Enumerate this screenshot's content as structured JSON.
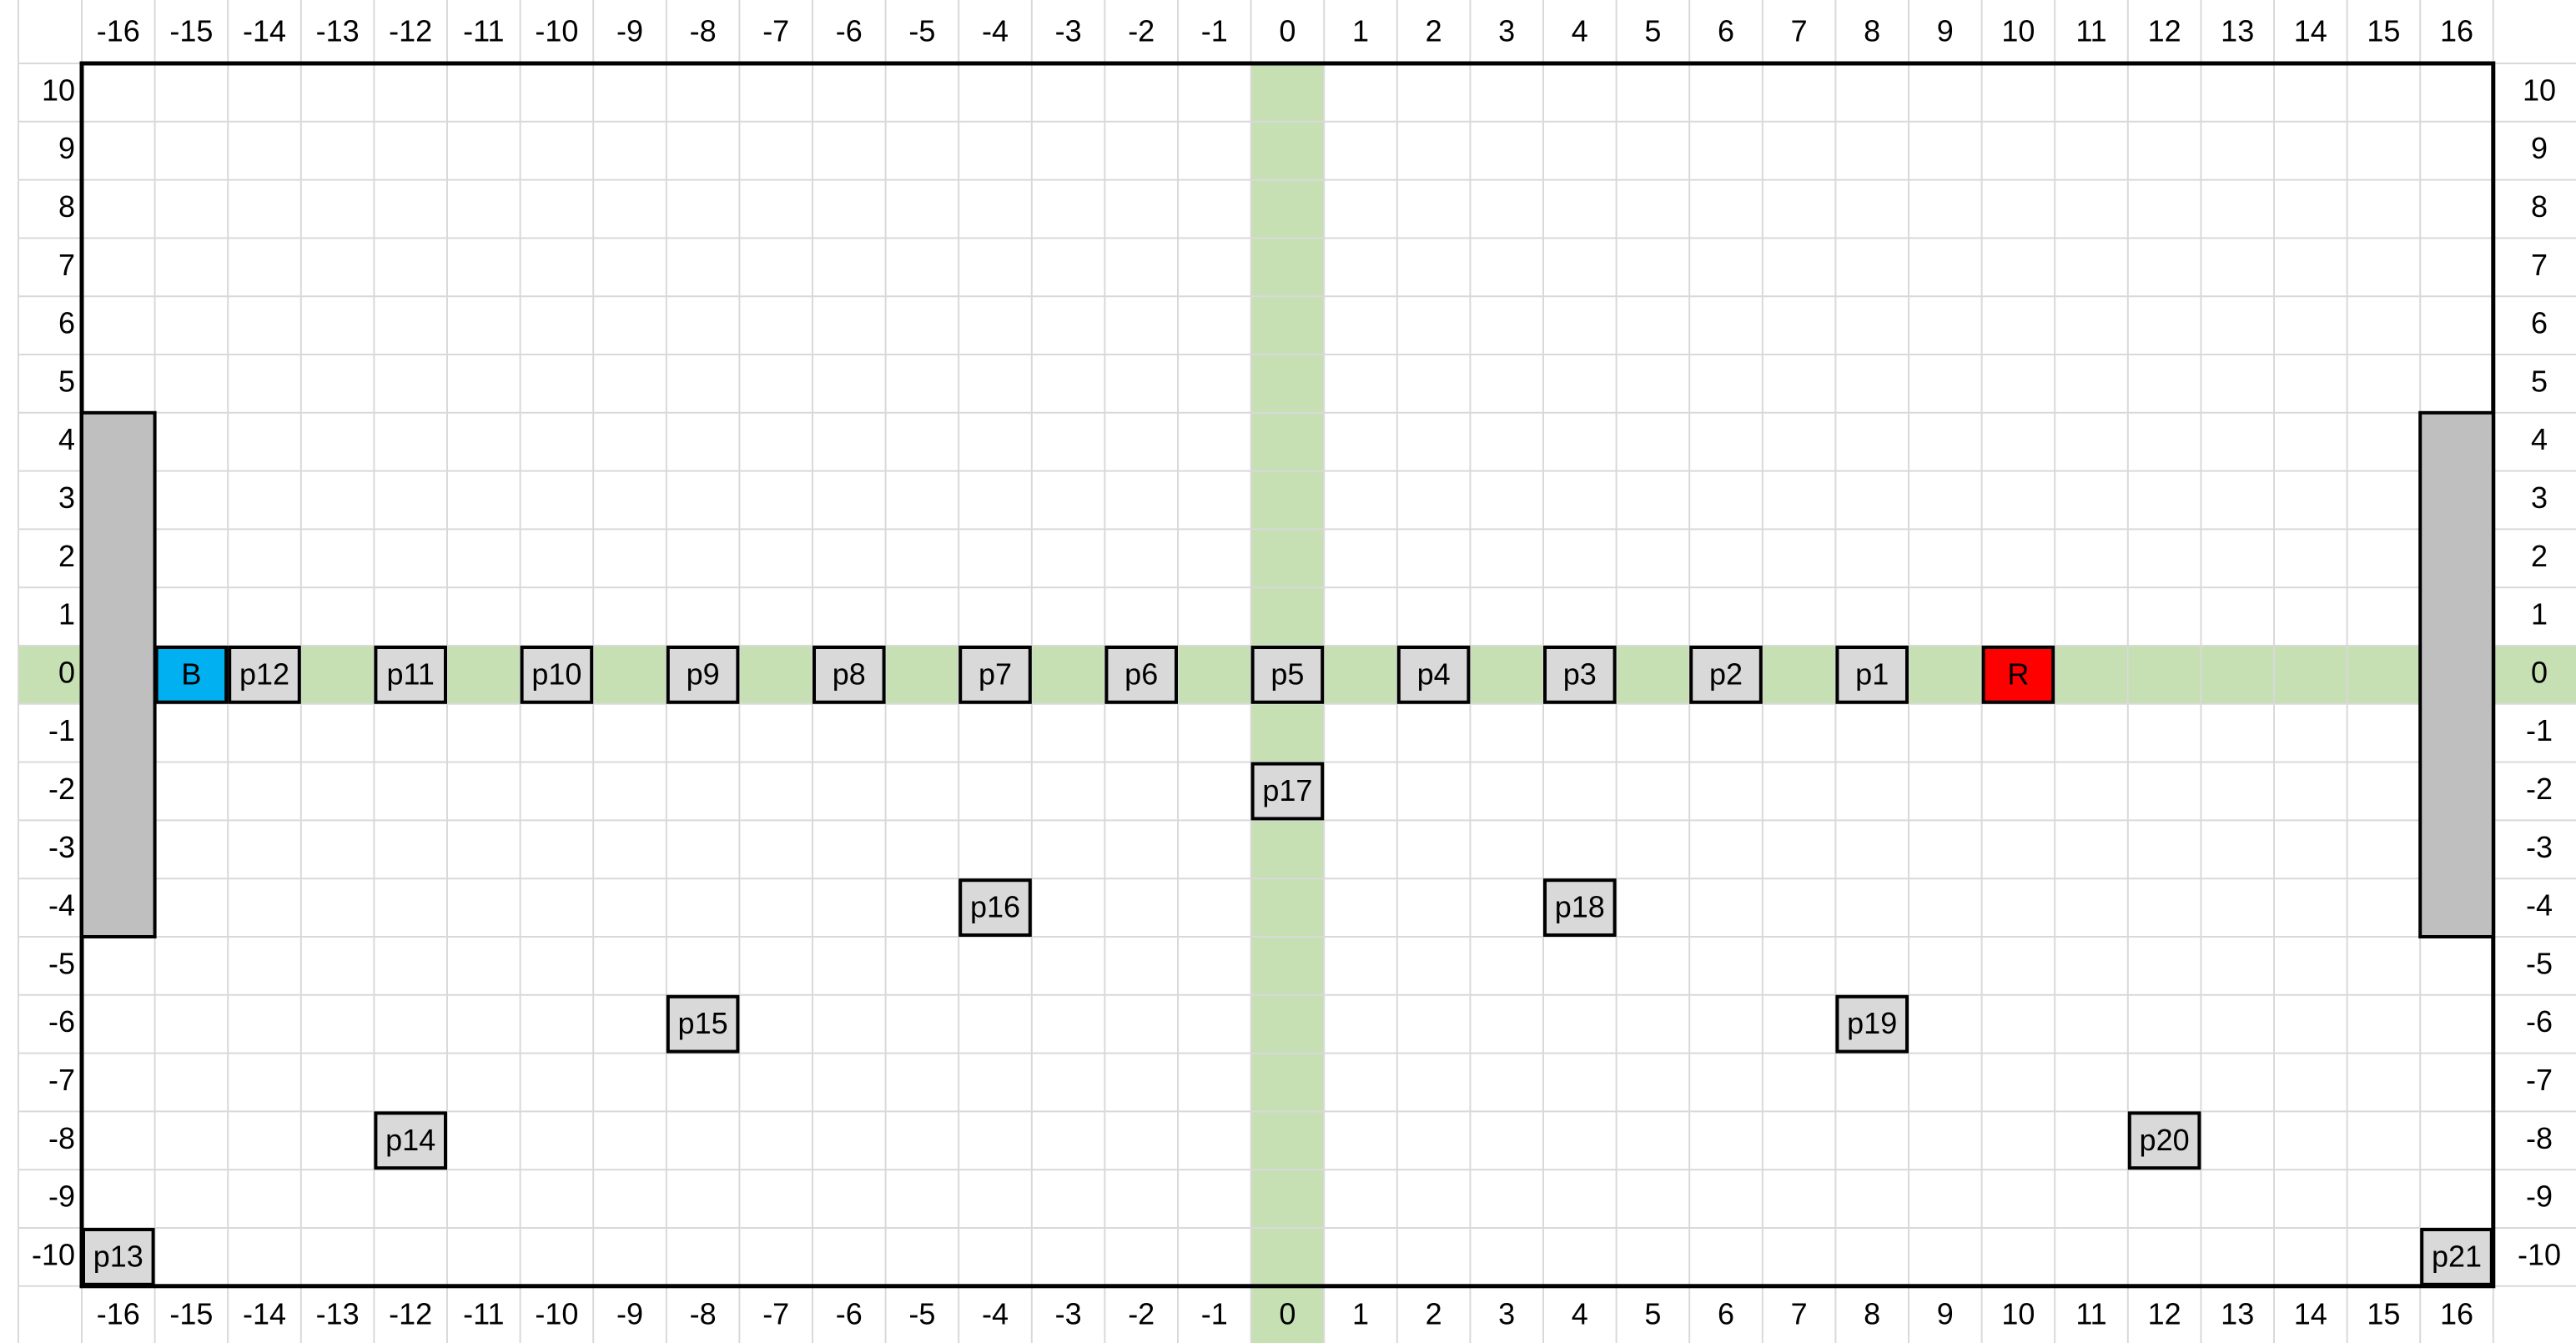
{
  "columns": [
    -16,
    -15,
    -14,
    -13,
    -12,
    -11,
    -10,
    -9,
    -8,
    -7,
    -6,
    -5,
    -4,
    -3,
    -2,
    -1,
    0,
    1,
    2,
    3,
    4,
    5,
    6,
    7,
    8,
    9,
    10,
    11,
    12,
    13,
    14,
    15,
    16
  ],
  "rows": [
    10,
    9,
    8,
    7,
    6,
    5,
    4,
    3,
    2,
    1,
    0,
    -1,
    -2,
    -3,
    -4,
    -5,
    -6,
    -7,
    -8,
    -9,
    -10
  ],
  "cells": [
    {
      "label": "B",
      "x": -15,
      "y": 0,
      "color": "#00b0f0"
    },
    {
      "label": "p12",
      "x": -14,
      "y": 0,
      "color": "#d9d9d9"
    },
    {
      "label": "p11",
      "x": -12,
      "y": 0,
      "color": "#d9d9d9"
    },
    {
      "label": "p10",
      "x": -10,
      "y": 0,
      "color": "#d9d9d9"
    },
    {
      "label": "p9",
      "x": -8,
      "y": 0,
      "color": "#d9d9d9"
    },
    {
      "label": "p8",
      "x": -6,
      "y": 0,
      "color": "#d9d9d9"
    },
    {
      "label": "p7",
      "x": -4,
      "y": 0,
      "color": "#d9d9d9"
    },
    {
      "label": "p6",
      "x": -2,
      "y": 0,
      "color": "#d9d9d9"
    },
    {
      "label": "p5",
      "x": 0,
      "y": 0,
      "color": "#d9d9d9"
    },
    {
      "label": "p4",
      "x": 2,
      "y": 0,
      "color": "#d9d9d9"
    },
    {
      "label": "p3",
      "x": 4,
      "y": 0,
      "color": "#d9d9d9"
    },
    {
      "label": "p2",
      "x": 6,
      "y": 0,
      "color": "#d9d9d9"
    },
    {
      "label": "p1",
      "x": 8,
      "y": 0,
      "color": "#d9d9d9"
    },
    {
      "label": "R",
      "x": 10,
      "y": 0,
      "color": "#ff0000"
    },
    {
      "label": "p17",
      "x": 0,
      "y": -2,
      "color": "#d9d9d9"
    },
    {
      "label": "p16",
      "x": -4,
      "y": -4,
      "color": "#d9d9d9"
    },
    {
      "label": "p18",
      "x": 4,
      "y": -4,
      "color": "#d9d9d9"
    },
    {
      "label": "p15",
      "x": -8,
      "y": -6,
      "color": "#d9d9d9"
    },
    {
      "label": "p19",
      "x": 8,
      "y": -6,
      "color": "#d9d9d9"
    },
    {
      "label": "p14",
      "x": -12,
      "y": -8,
      "color": "#d9d9d9"
    },
    {
      "label": "p20",
      "x": 12,
      "y": -8,
      "color": "#d9d9d9"
    },
    {
      "label": "p13",
      "x": -16,
      "y": -10,
      "color": "#d9d9d9"
    },
    {
      "label": "p21",
      "x": 16,
      "y": -10,
      "color": "#d9d9d9"
    }
  ]
}
